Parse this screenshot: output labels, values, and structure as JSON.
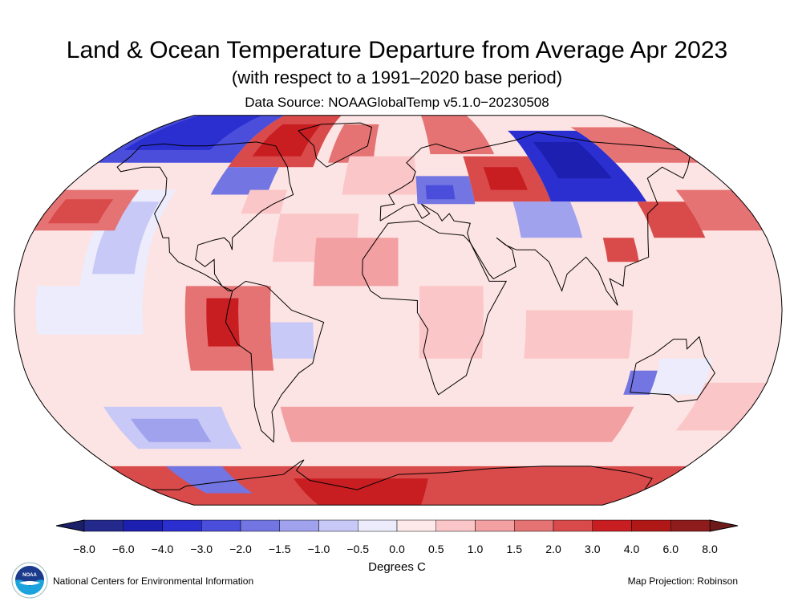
{
  "title": "Land & Ocean Temperature Departure from Average Apr 2023",
  "subtitle": "(with respect to a 1991–2020 base period)",
  "source": "Data Source: NOAAGlobalTemp v5.1.0−20230508",
  "map": {
    "projection": "Robinson",
    "base_color": "#fde4e4"
  },
  "colorbar": {
    "units": "Degrees C",
    "ticks": [
      "−8.0",
      "−6.0",
      "−4.0",
      "−3.0",
      "−2.0",
      "−1.5",
      "−1.0",
      "−0.5",
      "0.0",
      "0.5",
      "1.0",
      "1.5",
      "2.0",
      "3.0",
      "4.0",
      "6.0",
      "8.0"
    ],
    "colors": [
      "#232a8c",
      "#1c1fb0",
      "#2b2fd0",
      "#4a4edb",
      "#7375e2",
      "#a0a2ee",
      "#c8c9f6",
      "#ececfc",
      "#fde9ea",
      "#fbc6c8",
      "#f2a0a2",
      "#e67374",
      "#d94a4a",
      "#c81e22",
      "#b01818",
      "#8e1c1c"
    ],
    "under_color": "#1a1f6a",
    "over_color": "#6e1a1a"
  },
  "footer": {
    "logo_text": "NOAA",
    "organization": "National Centers for Environmental Information",
    "projection_note": "Map Projection: Robinson"
  }
}
